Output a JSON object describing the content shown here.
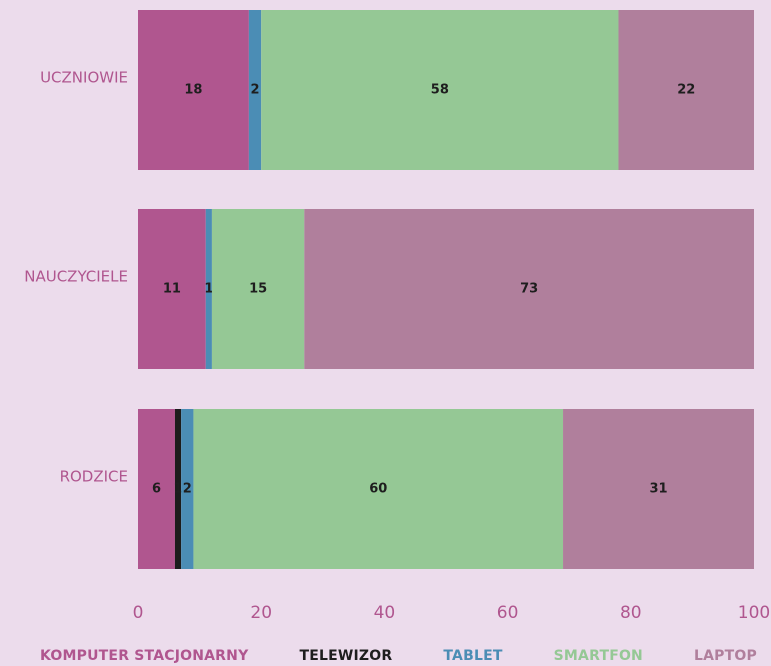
{
  "chart_data": {
    "type": "bar",
    "orientation": "horizontal",
    "stacked": true,
    "categories": [
      "UCZNIOWIE",
      "NAUCZYCIELE",
      "RODZICE"
    ],
    "series": [
      {
        "name": "KOMPUTER STACJONARNY",
        "color": "#b0568f",
        "values": [
          18,
          11,
          6
        ]
      },
      {
        "name": "TELEWIZOR",
        "color": "#1c1c1c",
        "values": [
          0,
          0,
          1
        ]
      },
      {
        "name": "TABLET",
        "color": "#4b8db5",
        "values": [
          2,
          1,
          2
        ]
      },
      {
        "name": "SMARTFON",
        "color": "#95c895",
        "values": [
          58,
          15,
          60
        ]
      },
      {
        "name": "LAPTOP",
        "color": "#b07f9c",
        "values": [
          22,
          73,
          31
        ]
      }
    ],
    "xlim": [
      0,
      100
    ],
    "xticks": [
      0,
      20,
      40,
      60,
      80,
      100
    ],
    "grid": false,
    "legend_position": "bottom"
  },
  "colors": {
    "background": "#ecdcec",
    "label_text": "#b0568f",
    "value_text": "#1e1e1e"
  }
}
